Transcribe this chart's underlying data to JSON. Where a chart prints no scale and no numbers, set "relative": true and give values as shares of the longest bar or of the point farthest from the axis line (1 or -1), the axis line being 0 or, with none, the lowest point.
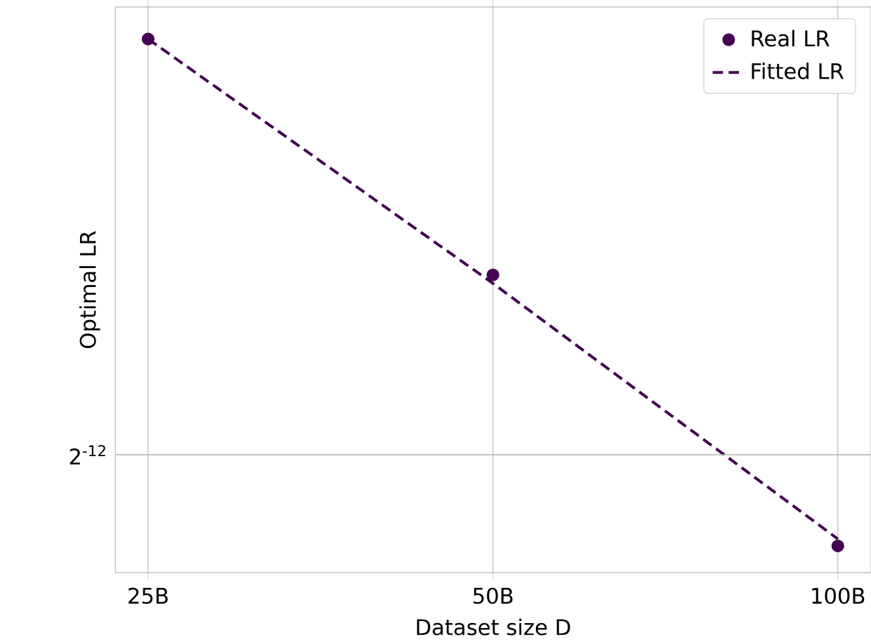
{
  "chart_data": {
    "type": "scatter",
    "relative": true,
    "log": "x",
    "xlabel": "Dataset size D",
    "ylabel": "Optimal LR",
    "x": [
      25,
      50,
      100
    ],
    "xlim": [
      23.4,
      106.9
    ],
    "xticks": [
      {
        "value": 25,
        "label": "25B"
      },
      {
        "value": 50,
        "label": "50B"
      },
      {
        "value": 100,
        "label": "100B"
      }
    ],
    "series": [
      {
        "name": "Real LR",
        "marker": "circle",
        "color": "#440154",
        "values": [
          1,
          0.558,
          0.05
        ]
      },
      {
        "name": "Fitted LR",
        "type": "line",
        "marker": "none",
        "line_style": "dashed",
        "color": "#440154",
        "values": [
          1,
          0.542,
          0.063
        ]
      }
    ],
    "ref_lines": [
      {
        "axis": "y",
        "value": 0.221,
        "color": "#b0b0b0"
      }
    ],
    "annotations": [
      "2$^{-12}$"
    ],
    "grid": "x",
    "legend": "top right"
  }
}
